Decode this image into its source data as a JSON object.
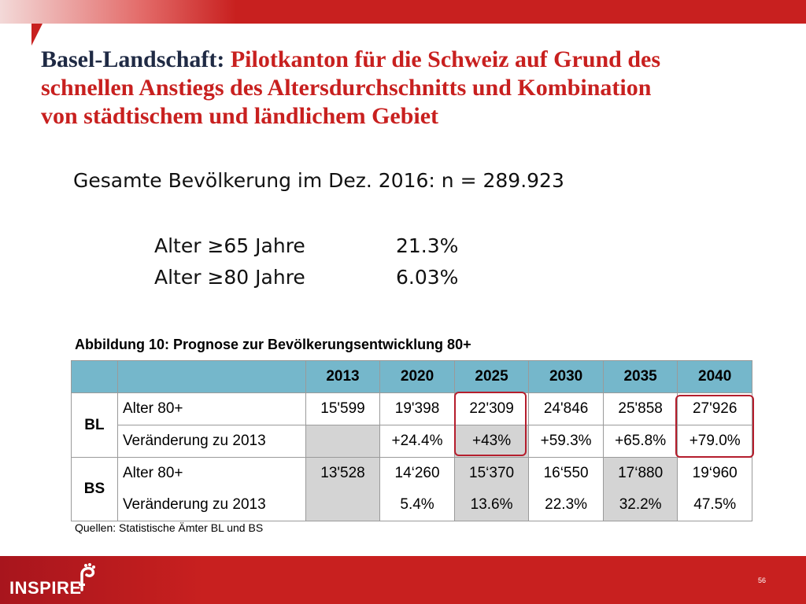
{
  "title": {
    "lead": "Basel-Landschaft:",
    "rest": "Pilotkanton für die Schweiz auf Grund des schnellen Anstiegs des Altersdurchschnitts  und Kombination von städtischem und ländlichem Gebiet"
  },
  "population": "Gesamte Bevölkerung im Dez. 2016:  n = 289.923",
  "stats": [
    {
      "label": "Alter ≥65 Jahre",
      "value": "21.3%"
    },
    {
      "label": "Alter ≥80 Jahre",
      "value": "6.03%"
    }
  ],
  "figure": {
    "caption": "Abbildung 10: Prognose zur Bevölkerungsentwicklung 80+",
    "years": [
      "2013",
      "2020",
      "2025",
      "2030",
      "2035",
      "2040"
    ],
    "bl": {
      "region": "BL",
      "rows": [
        {
          "label": "Alter 80+",
          "values": [
            "15'599",
            "19'398",
            "22'309",
            "24'846",
            "25'858",
            "27'926"
          ]
        },
        {
          "label": "Veränderung zu 2013",
          "values": [
            "",
            "+24.4%",
            "+43%",
            "+59.3%",
            "+65.8%",
            "+79.0%"
          ]
        }
      ]
    },
    "bs": {
      "region": "BS",
      "rows": [
        {
          "label": "Alter 80+",
          "values": [
            "13'528",
            "14‘260",
            "15‘370",
            "16‘550",
            "17‘880",
            "19‘960"
          ]
        },
        {
          "label": "Veränderung zu 2013",
          "values": [
            "",
            "5.4%",
            "13.6%",
            "22.3%",
            "32.2%",
            "47.5%"
          ]
        }
      ]
    },
    "highlight_color": "#b51e2d",
    "header_color": "#75b7cb",
    "source": "Quellen: Statistische Ämter BL und BS"
  },
  "footer": {
    "logo": "INSPIRE",
    "page_number": "56"
  },
  "colors": {
    "brand_red": "#c8201f",
    "title_dark": "#1f2a44"
  }
}
